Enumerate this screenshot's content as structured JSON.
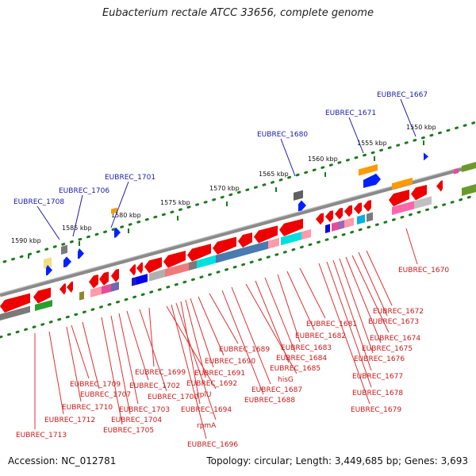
{
  "title": "Eubacterium rectale ATCC 33656, complete genome",
  "footer": {
    "accession": "Accession: NC_012781",
    "topology": "Topology: circular; Length: 3,449,685 bp; Genes: 3,693"
  },
  "scale_labels": [
    "1590 kbp",
    "1585 kbp",
    "1580 kbp",
    "1575 kbp",
    "1570 kbp",
    "1565 kbp",
    "1560 kbp",
    "1555 kbp",
    "1550 kbp"
  ],
  "blue_labels": [
    "EUBREC_1708",
    "EUBREC_1706",
    "EUBREC_1701",
    "EUBREC_1680",
    "EUBREC_1671",
    "EUBREC_1667"
  ],
  "red_labels": [
    "EUBREC_1713",
    "EUBREC_1712",
    "EUBREC_1710",
    "EUBREC_1709",
    "EUBREC_1707",
    "EUBREC_1705",
    "EUBREC_1704",
    "EUBREC_1703",
    "EUBREC_1702",
    "EUBREC_1700",
    "EUBREC_1699",
    "rplU",
    "EUBREC_1696",
    "rpmA",
    "EUBREC_1694",
    "EUBREC_1692",
    "EUBREC_1691",
    "EUBREC_1690",
    "EUBREC_1689",
    "EUBREC_1688",
    "EUBREC_1687",
    "hisG",
    "EUBREC_1685",
    "EUBREC_1684",
    "EUBREC_1683",
    "EUBREC_1682",
    "EUBREC_1681",
    "EUBREC_1679",
    "EUBREC_1678",
    "EUBREC_1677",
    "EUBREC_1676",
    "EUBREC_1675",
    "EUBREC_1674",
    "EUBREC_1673",
    "EUBREC_1672",
    "EUBREC_1670"
  ],
  "colors": {
    "backbone": "#8a8a8a",
    "scale_dots": "#1c7a1c",
    "forward_gene": "#ee0000",
    "label_blue": "#1a1aa8",
    "label_red": "#c81818"
  }
}
